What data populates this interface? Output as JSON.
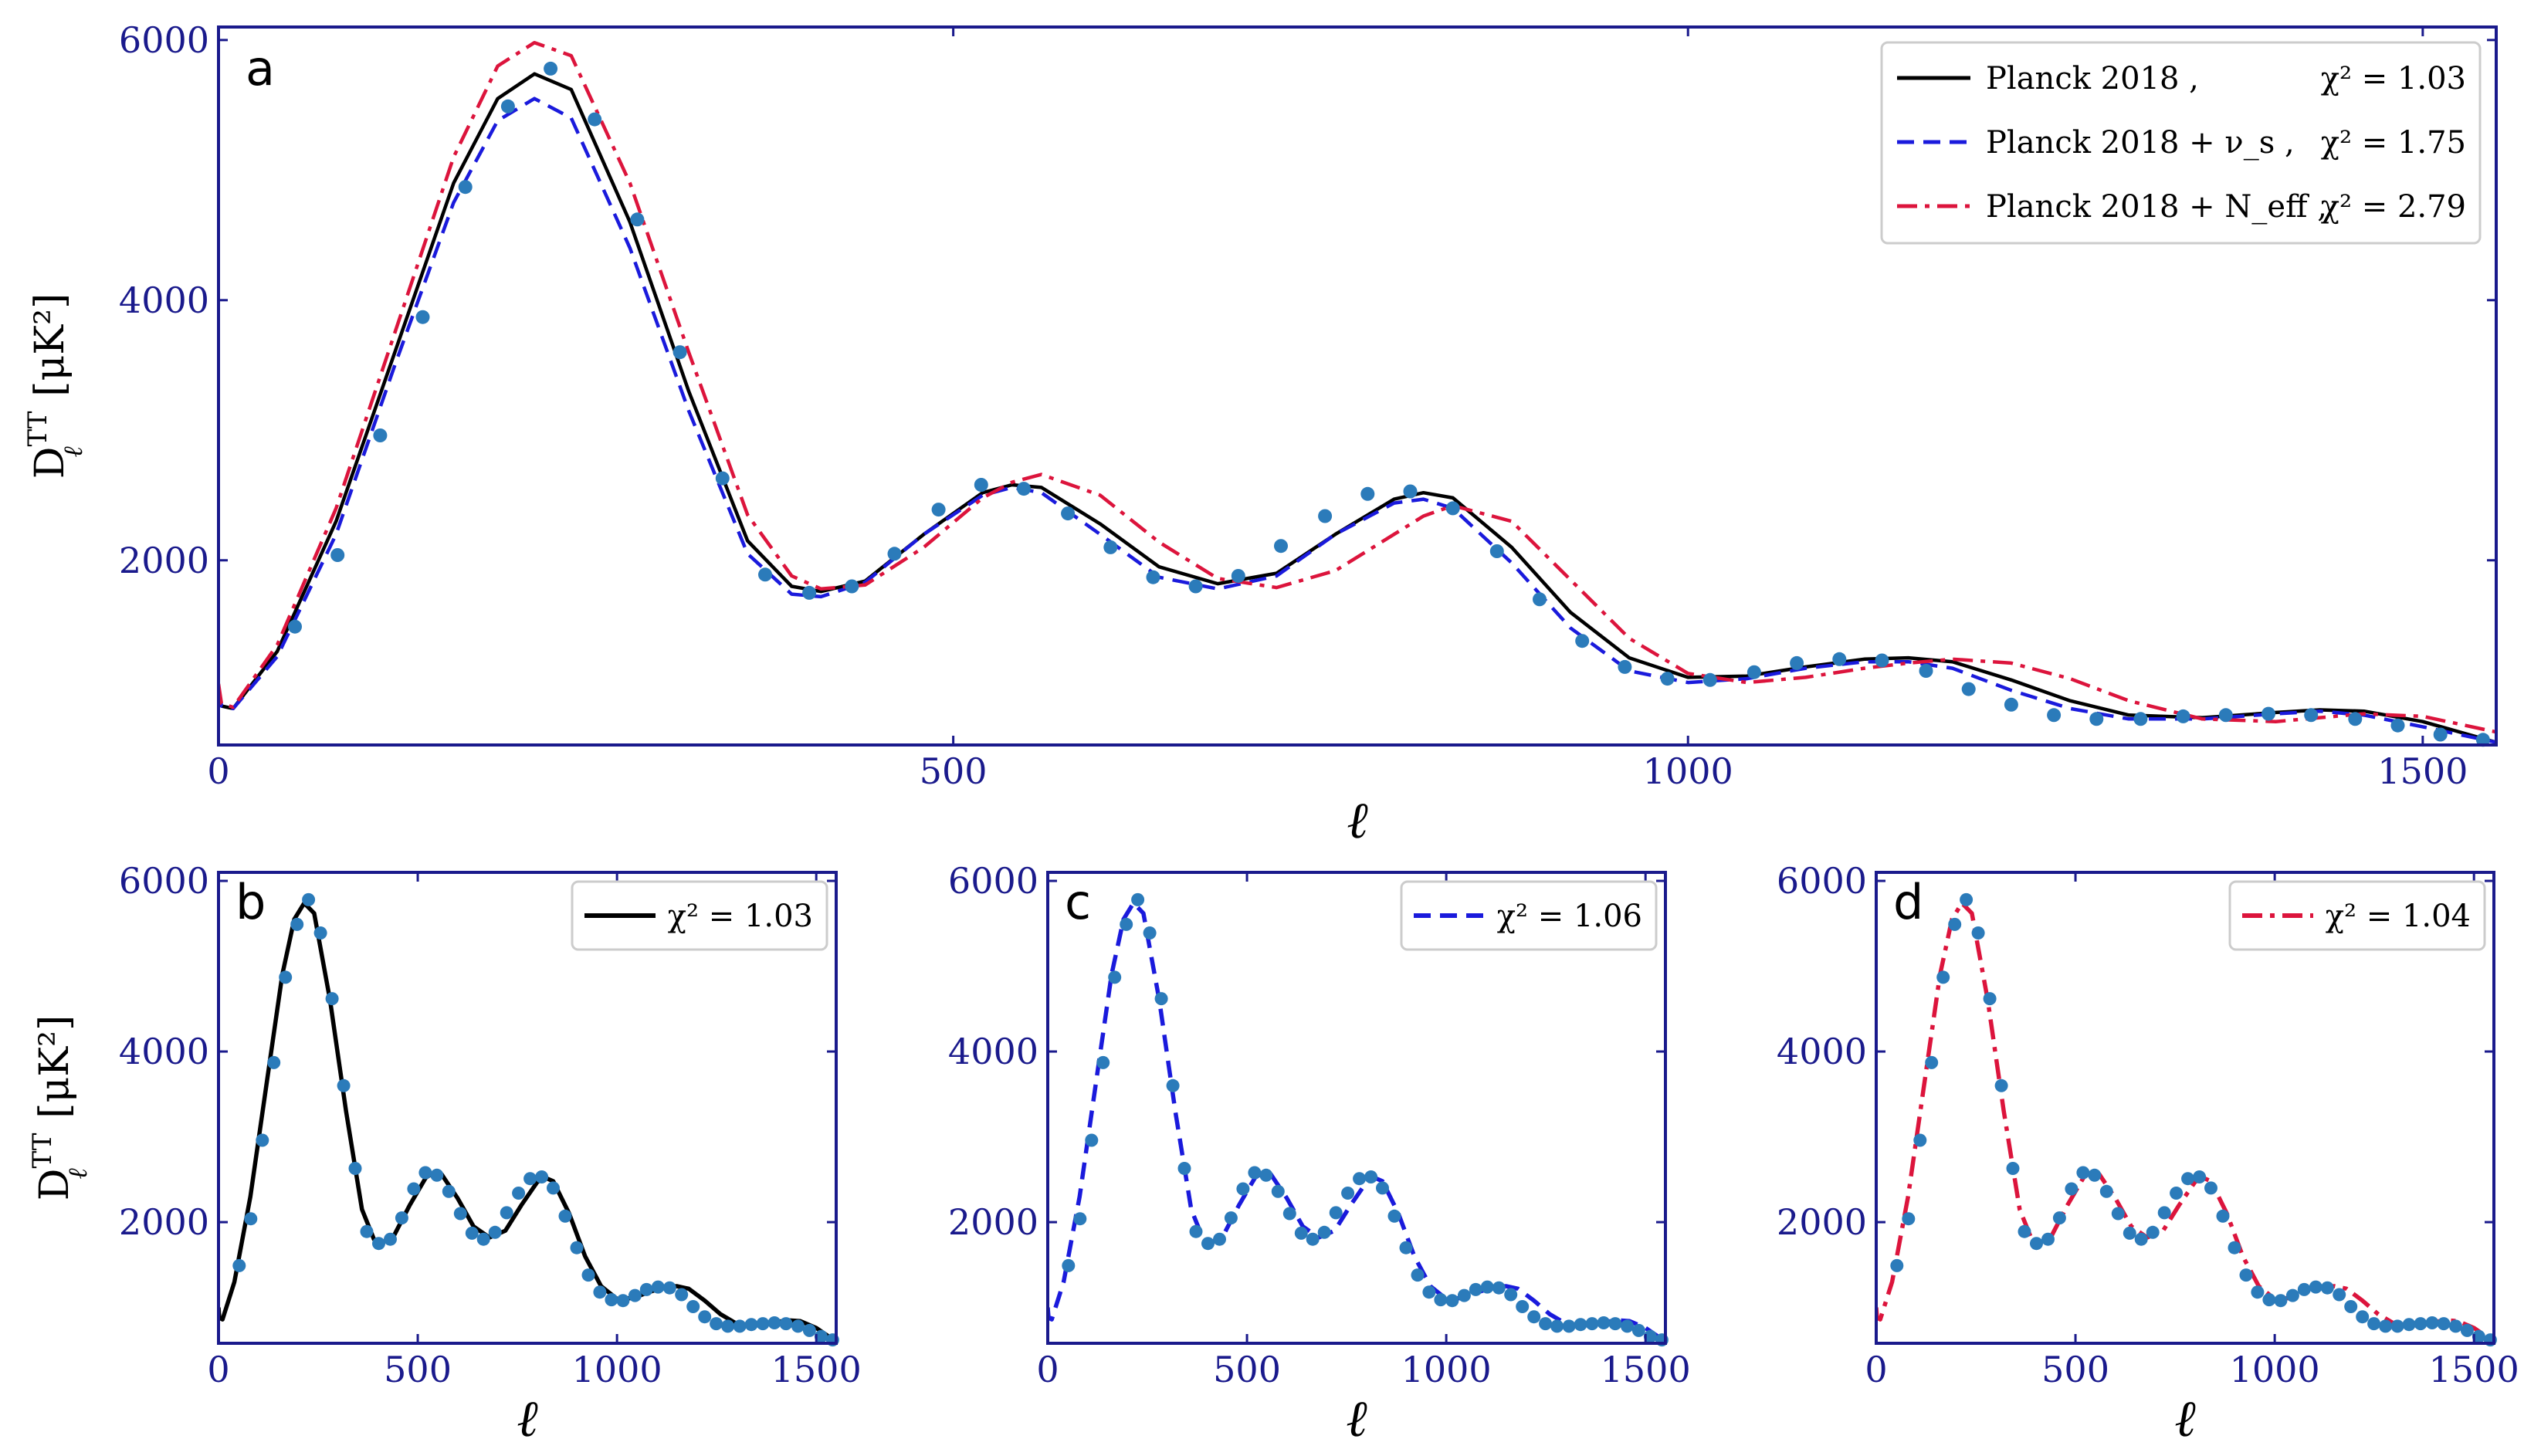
{
  "figure": {
    "axis_color": "#1a1a8c",
    "marker_color": "#2b7bba",
    "series_colors": {
      "planck": "#000000",
      "nus": "#1a1adc",
      "neff": "#dc143c"
    },
    "y_label_main": "D",
    "y_label_sup": "TT",
    "y_label_sub": "ℓ",
    "y_label_units": "[μK²]",
    "x_label": "ℓ"
  },
  "chart_data": [
    {
      "panel": "a",
      "type": "line",
      "xlabel": "ℓ",
      "ylabel": "D_ℓ^TT [μK²]",
      "xlim": [
        0,
        1550
      ],
      "ylim": [
        580,
        6100
      ],
      "xticks": [
        "0",
        "500",
        "1000",
        "1500"
      ],
      "yticks": [
        "2000",
        "4000",
        "6000"
      ],
      "legend_position": "top-right",
      "series": [
        {
          "name": "Planck 2018 ,",
          "chi2": "χ² = 1.03",
          "style": "solid",
          "color_key": "planck",
          "x": [
            0,
            2,
            10,
            40,
            80,
            120,
            160,
            190,
            215,
            240,
            280,
            320,
            360,
            390,
            410,
            440,
            480,
            520,
            540,
            560,
            600,
            640,
            680,
            720,
            760,
            800,
            820,
            840,
            880,
            920,
            960,
            1000,
            1040,
            1080,
            1120,
            1150,
            1180,
            1220,
            1260,
            1300,
            1350,
            1400,
            1430,
            1460,
            1500,
            1550
          ],
          "y": [
            1000,
            880,
            860,
            1300,
            2300,
            3600,
            4900,
            5550,
            5740,
            5620,
            4600,
            3300,
            2150,
            1800,
            1760,
            1840,
            2200,
            2520,
            2580,
            2560,
            2280,
            1950,
            1820,
            1900,
            2200,
            2470,
            2520,
            2480,
            2100,
            1600,
            1250,
            1100,
            1110,
            1180,
            1240,
            1250,
            1220,
            1080,
            920,
            810,
            790,
            830,
            850,
            840,
            760,
            600
          ]
        },
        {
          "name": "Planck 2018 + ν_s ,",
          "chi2": "χ² = 1.75",
          "style": "dashed",
          "color_key": "nus",
          "x": [
            0,
            2,
            10,
            40,
            80,
            120,
            160,
            190,
            215,
            240,
            280,
            320,
            360,
            390,
            410,
            440,
            480,
            520,
            540,
            560,
            600,
            640,
            680,
            720,
            760,
            800,
            820,
            840,
            880,
            920,
            960,
            1000,
            1040,
            1080,
            1120,
            1150,
            1180,
            1220,
            1260,
            1300,
            1350,
            1400,
            1430,
            1460,
            1500,
            1550
          ],
          "y": [
            1000,
            880,
            860,
            1260,
            2200,
            3500,
            4750,
            5380,
            5550,
            5400,
            4400,
            3150,
            2050,
            1740,
            1720,
            1830,
            2200,
            2500,
            2560,
            2520,
            2200,
            1870,
            1780,
            1880,
            2200,
            2440,
            2470,
            2400,
            1980,
            1480,
            1150,
            1060,
            1090,
            1170,
            1220,
            1220,
            1170,
            1000,
            860,
            780,
            780,
            820,
            840,
            810,
            720,
            600
          ]
        },
        {
          "name": "Planck 2018 + N_eff ,",
          "chi2": "χ² = 2.79",
          "style": "dashdot",
          "color_key": "neff",
          "x": [
            0,
            2,
            10,
            40,
            80,
            120,
            160,
            190,
            215,
            240,
            280,
            320,
            360,
            390,
            410,
            440,
            480,
            520,
            540,
            560,
            600,
            640,
            680,
            720,
            760,
            800,
            820,
            840,
            880,
            920,
            960,
            1000,
            1040,
            1080,
            1120,
            1150,
            1180,
            1220,
            1260,
            1300,
            1350,
            1400,
            1430,
            1460,
            1500,
            1550
          ],
          "y": [
            1050,
            900,
            870,
            1350,
            2400,
            3750,
            5100,
            5800,
            5980,
            5880,
            4900,
            3600,
            2350,
            1880,
            1780,
            1810,
            2100,
            2480,
            2600,
            2660,
            2500,
            2140,
            1860,
            1790,
            1920,
            2200,
            2340,
            2420,
            2300,
            1850,
            1400,
            1130,
            1060,
            1100,
            1170,
            1210,
            1240,
            1210,
            1090,
            920,
            780,
            760,
            790,
            820,
            800,
            680
          ]
        }
      ],
      "data_points": {
        "x": [
          52,
          81,
          110,
          139,
          168,
          197,
          226,
          256,
          285,
          314,
          343,
          372,
          402,
          431,
          460,
          490,
          519,
          548,
          578,
          607,
          636,
          665,
          694,
          723,
          753,
          782,
          811,
          840,
          870,
          899,
          928,
          957,
          986,
          1015,
          1045,
          1074,
          1103,
          1132,
          1162,
          1191,
          1220,
          1249,
          1278,
          1308,
          1337,
          1366,
          1395,
          1424,
          1454,
          1483,
          1512,
          1541
        ],
        "y": [
          1490,
          2040,
          2960,
          3870,
          4870,
          5490,
          5780,
          5390,
          4620,
          3600,
          2630,
          1890,
          1750,
          1800,
          2050,
          2390,
          2580,
          2550,
          2360,
          2100,
          1870,
          1800,
          1880,
          2110,
          2340,
          2510,
          2530,
          2400,
          2070,
          1700,
          1380,
          1180,
          1090,
          1080,
          1140,
          1210,
          1240,
          1230,
          1150,
          1010,
          890,
          810,
          780,
          780,
          800,
          810,
          820,
          810,
          780,
          730,
          660,
          620
        ]
      }
    },
    {
      "panel": "b",
      "type": "line",
      "xlabel": "ℓ",
      "ylabel": "D_ℓ^TT [μK²]",
      "xlim": [
        0,
        1550
      ],
      "ylim": [
        580,
        6100
      ],
      "xticks": [
        "0",
        "500",
        "1000",
        "1500"
      ],
      "yticks": [
        "2000",
        "4000",
        "6000"
      ],
      "legend_position": "top-right",
      "series": [
        {
          "name": "",
          "chi2": "χ² = 1.03",
          "style": "solid",
          "color_key": "planck",
          "x": [
            0,
            2,
            10,
            40,
            80,
            120,
            160,
            190,
            215,
            240,
            280,
            320,
            360,
            390,
            410,
            440,
            480,
            520,
            540,
            560,
            600,
            640,
            680,
            720,
            760,
            800,
            820,
            840,
            880,
            920,
            960,
            1000,
            1040,
            1080,
            1120,
            1150,
            1180,
            1220,
            1260,
            1300,
            1350,
            1400,
            1430,
            1460,
            1500,
            1550
          ],
          "y": [
            1000,
            880,
            860,
            1300,
            2300,
            3600,
            4900,
            5550,
            5740,
            5620,
            4600,
            3300,
            2150,
            1800,
            1760,
            1840,
            2200,
            2520,
            2580,
            2560,
            2280,
            1950,
            1820,
            1900,
            2200,
            2470,
            2520,
            2480,
            2100,
            1600,
            1250,
            1100,
            1110,
            1180,
            1240,
            1250,
            1220,
            1080,
            920,
            810,
            790,
            830,
            850,
            840,
            760,
            600
          ]
        }
      ],
      "data_points_ref": "a"
    },
    {
      "panel": "c",
      "type": "line",
      "xlabel": "ℓ",
      "ylabel": "",
      "xlim": [
        0,
        1550
      ],
      "ylim": [
        580,
        6100
      ],
      "xticks": [
        "0",
        "500",
        "1000",
        "1500"
      ],
      "yticks": [
        "2000",
        "4000",
        "6000"
      ],
      "legend_position": "top-right",
      "series": [
        {
          "name": "",
          "chi2": "χ² = 1.06",
          "style": "dashed",
          "color_key": "nus",
          "x": [
            0,
            2,
            10,
            40,
            80,
            120,
            160,
            190,
            215,
            240,
            280,
            320,
            360,
            390,
            410,
            440,
            480,
            520,
            540,
            560,
            600,
            640,
            680,
            720,
            760,
            800,
            820,
            840,
            880,
            920,
            960,
            1000,
            1040,
            1080,
            1120,
            1150,
            1180,
            1220,
            1260,
            1300,
            1350,
            1400,
            1430,
            1460,
            1500,
            1550
          ],
          "y": [
            1000,
            880,
            860,
            1300,
            2300,
            3600,
            4900,
            5550,
            5740,
            5620,
            4600,
            3300,
            2150,
            1800,
            1760,
            1840,
            2200,
            2520,
            2580,
            2560,
            2280,
            1950,
            1820,
            1900,
            2200,
            2470,
            2520,
            2480,
            2100,
            1600,
            1250,
            1100,
            1110,
            1180,
            1240,
            1250,
            1220,
            1080,
            920,
            810,
            790,
            830,
            850,
            840,
            760,
            600
          ]
        }
      ],
      "data_points_ref": "a"
    },
    {
      "panel": "d",
      "type": "line",
      "xlabel": "ℓ",
      "ylabel": "",
      "xlim": [
        0,
        1550
      ],
      "ylim": [
        580,
        6100
      ],
      "xticks": [
        "0",
        "500",
        "1000",
        "1500"
      ],
      "yticks": [
        "2000",
        "4000",
        "6000"
      ],
      "legend_position": "top-right",
      "series": [
        {
          "name": "",
          "chi2": "χ² = 1.04",
          "style": "dashdot",
          "color_key": "neff",
          "x": [
            0,
            2,
            10,
            40,
            80,
            120,
            160,
            190,
            215,
            240,
            280,
            320,
            360,
            390,
            410,
            440,
            480,
            520,
            540,
            560,
            600,
            640,
            680,
            720,
            760,
            800,
            820,
            840,
            880,
            920,
            960,
            1000,
            1040,
            1080,
            1120,
            1150,
            1180,
            1220,
            1260,
            1300,
            1350,
            1400,
            1430,
            1460,
            1500,
            1550
          ],
          "y": [
            1000,
            880,
            860,
            1300,
            2300,
            3600,
            4900,
            5550,
            5740,
            5620,
            4600,
            3300,
            2150,
            1800,
            1760,
            1840,
            2200,
            2520,
            2580,
            2560,
            2280,
            1950,
            1820,
            1900,
            2200,
            2470,
            2520,
            2480,
            2100,
            1600,
            1250,
            1100,
            1110,
            1180,
            1240,
            1250,
            1220,
            1080,
            920,
            810,
            790,
            830,
            850,
            840,
            760,
            600
          ]
        }
      ],
      "data_points_ref": "a"
    }
  ]
}
